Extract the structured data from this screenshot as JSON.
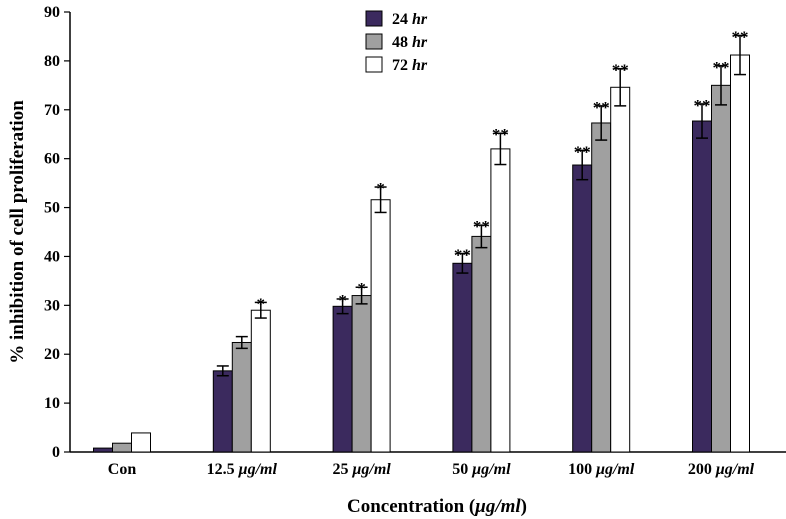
{
  "chart_data": {
    "type": "bar",
    "ylabel": "% inhibition of cell proliferation",
    "xlabel": "Concentration (μg/ml)",
    "xlabel_parts": [
      "Concentration (",
      "μg/ml",
      ")"
    ],
    "ylim": [
      0,
      90
    ],
    "yticks": [
      0,
      10,
      20,
      30,
      40,
      50,
      60,
      70,
      80,
      90
    ],
    "categories": [
      "Con",
      "12.5 μg/ml",
      "25 μg/ml",
      "50 μg/ml",
      "100 μg/ml",
      "200 μg/ml"
    ],
    "category_parts": [
      [
        "Con",
        ""
      ],
      [
        "12.5 ",
        "μg/ml"
      ],
      [
        "25 ",
        "μg/ml"
      ],
      [
        "50 ",
        "μg/ml"
      ],
      [
        "100 ",
        "μg/ml"
      ],
      [
        "200 ",
        "μg/ml"
      ]
    ],
    "legend_position": "top-center",
    "series": [
      {
        "name": "24 hr",
        "name_parts": [
          "24 ",
          "hr"
        ],
        "color": "#3b2a5e",
        "values": [
          0.8,
          16.6,
          29.8,
          38.6,
          58.7,
          67.7
        ],
        "errors": [
          0,
          1.0,
          1.5,
          2.0,
          3.0,
          3.5
        ],
        "significance": [
          "",
          "",
          "*",
          "**",
          "**",
          "**"
        ]
      },
      {
        "name": "48 hr",
        "name_parts": [
          "48 ",
          "hr"
        ],
        "color": "#a0a0a0",
        "values": [
          1.8,
          22.4,
          32.0,
          44.1,
          67.3,
          75.0
        ],
        "errors": [
          0,
          1.2,
          1.7,
          2.3,
          3.5,
          4.0
        ],
        "significance": [
          "",
          "",
          "*",
          "**",
          "**",
          "**"
        ]
      },
      {
        "name": "72 hr",
        "name_parts": [
          "72 ",
          "hr"
        ],
        "color": "#ffffff",
        "values": [
          3.9,
          29.0,
          51.6,
          62.0,
          74.6,
          81.2
        ],
        "errors": [
          0,
          1.6,
          2.6,
          3.2,
          3.8,
          4.0
        ],
        "significance": [
          "",
          "*",
          "*",
          "**",
          "**",
          "**"
        ]
      }
    ]
  }
}
